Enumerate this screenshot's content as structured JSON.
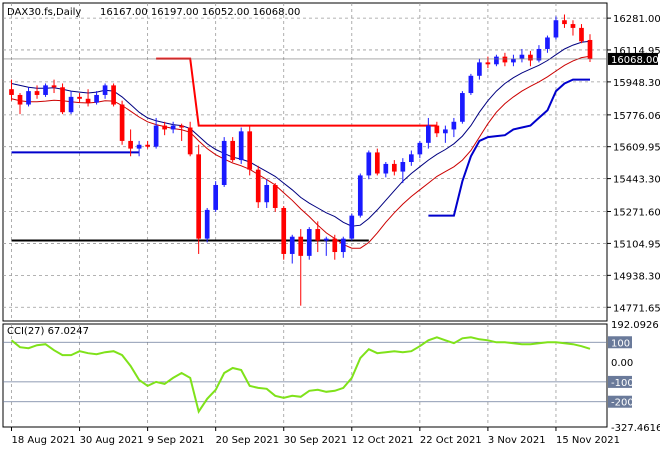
{
  "header": {
    "symbol": "DAX30.fs,Daily",
    "ohlc": "16167.00 16197.00 16052.00 16068.00",
    "indicator": "CCI(27) 67.0247"
  },
  "colors": {
    "bull": "#1a1aff",
    "bear": "#ff0000",
    "ma_fast": "#000080",
    "ma_slow": "#cc0000",
    "support": "#0000cc",
    "resistance": "#ff0000",
    "level": "#000000",
    "cci": "#7fe21a",
    "grid": "#9a9a9a",
    "price_tag_bg": "#000000"
  },
  "chart_data": [
    {
      "type": "candlestick",
      "title": "DAX30.fs,Daily",
      "ylim": [
        14700,
        16360
      ],
      "y_ticks": [
        16281.0,
        16114.95,
        15948.3,
        15776.06,
        15609.95,
        15443.3,
        15271.6,
        15104.95,
        14938.3,
        14771.65
      ],
      "y_tick_labels": [
        "16281.00",
        "16114.95",
        "15948.30",
        "15776.06",
        "15609.95",
        "15443.30",
        "15271.60",
        "15104.95",
        "14938.30",
        "14771.65"
      ],
      "last_price": 16068.0,
      "last_price_label": "16068.00",
      "x_labels": [
        "18 Aug 2021",
        "30 Aug 2021",
        "9 Sep 2021",
        "20 Sep 2021",
        "30 Sep 2021",
        "12 Oct 2021",
        "22 Oct 2021",
        "3 Nov 2021",
        "15 Nov 2021"
      ],
      "x_label_index": [
        0,
        8,
        16,
        24,
        32,
        40,
        48,
        56,
        64
      ],
      "grid": true,
      "candles": [
        [
          15910,
          15960,
          15850,
          15880
        ],
        [
          15880,
          15890,
          15780,
          15830
        ],
        [
          15830,
          15920,
          15820,
          15900
        ],
        [
          15900,
          15930,
          15860,
          15880
        ],
        [
          15880,
          15940,
          15870,
          15930
        ],
        [
          15930,
          15960,
          15890,
          15920
        ],
        [
          15920,
          15940,
          15780,
          15790
        ],
        [
          15790,
          15900,
          15780,
          15870
        ],
        [
          15870,
          15890,
          15840,
          15860
        ],
        [
          15860,
          15910,
          15820,
          15840
        ],
        [
          15840,
          15900,
          15830,
          15880
        ],
        [
          15880,
          15940,
          15860,
          15930
        ],
        [
          15930,
          15940,
          15820,
          15830
        ],
        [
          15830,
          15850,
          15620,
          15640
        ],
        [
          15640,
          15700,
          15560,
          15600
        ],
        [
          15600,
          15640,
          15560,
          15620
        ],
        [
          15620,
          15640,
          15600,
          15610
        ],
        [
          15610,
          15760,
          15600,
          15720
        ],
        [
          15720,
          15740,
          15670,
          15700
        ],
        [
          15700,
          15740,
          15680,
          15720
        ],
        [
          15720,
          15730,
          15640,
          15710
        ],
        [
          15710,
          15740,
          15560,
          15570
        ],
        [
          15570,
          15620,
          15050,
          15130
        ],
        [
          15130,
          15290,
          15110,
          15280
        ],
        [
          15280,
          15430,
          15270,
          15410
        ],
        [
          15410,
          15660,
          15400,
          15640
        ],
        [
          15640,
          15660,
          15530,
          15540
        ],
        [
          15540,
          15710,
          15520,
          15690
        ],
        [
          15690,
          15720,
          15460,
          15490
        ],
        [
          15490,
          15510,
          15290,
          15320
        ],
        [
          15320,
          15440,
          15290,
          15410
        ],
        [
          15410,
          15420,
          15270,
          15290
        ],
        [
          15290,
          15300,
          15020,
          15050
        ],
        [
          15050,
          15150,
          15000,
          15140
        ],
        [
          15140,
          15180,
          14780,
          15040
        ],
        [
          15040,
          15190,
          15020,
          15180
        ],
        [
          15180,
          15220,
          15060,
          15120
        ],
        [
          15120,
          15140,
          15040,
          15130
        ],
        [
          15130,
          15150,
          15020,
          15060
        ],
        [
          15060,
          15140,
          15030,
          15130
        ],
        [
          15130,
          15260,
          15120,
          15250
        ],
        [
          15250,
          15470,
          15240,
          15460
        ],
        [
          15460,
          15590,
          15440,
          15580
        ],
        [
          15580,
          15600,
          15460,
          15470
        ],
        [
          15470,
          15530,
          15450,
          15520
        ],
        [
          15520,
          15540,
          15460,
          15480
        ],
        [
          15480,
          15550,
          15420,
          15530
        ],
        [
          15530,
          15590,
          15510,
          15570
        ],
        [
          15570,
          15640,
          15550,
          15630
        ],
        [
          15630,
          15760,
          15600,
          15720
        ],
        [
          15720,
          15740,
          15660,
          15680
        ],
        [
          15680,
          15720,
          15630,
          15700
        ],
        [
          15700,
          15760,
          15660,
          15740
        ],
        [
          15740,
          15900,
          15730,
          15890
        ],
        [
          15890,
          15990,
          15880,
          15980
        ],
        [
          15980,
          16070,
          15960,
          16050
        ],
        [
          16050,
          16080,
          16020,
          16040
        ],
        [
          16040,
          16090,
          16030,
          16080
        ],
        [
          16080,
          16100,
          16030,
          16050
        ],
        [
          16050,
          16090,
          16030,
          16070
        ],
        [
          16070,
          16120,
          16050,
          16090
        ],
        [
          16090,
          16110,
          16030,
          16060
        ],
        [
          16060,
          16140,
          16050,
          16120
        ],
        [
          16120,
          16190,
          16100,
          16180
        ],
        [
          16180,
          16290,
          16170,
          16270
        ],
        [
          16270,
          16300,
          16230,
          16250
        ],
        [
          16250,
          16270,
          16190,
          16230
        ],
        [
          16230,
          16250,
          16150,
          16160
        ],
        [
          16167,
          16197,
          16052,
          16068
        ]
      ],
      "ma_fast": [
        15940,
        15930,
        15920,
        15915,
        15915,
        15918,
        15910,
        15900,
        15895,
        15890,
        15895,
        15905,
        15900,
        15870,
        15830,
        15790,
        15760,
        15745,
        15735,
        15725,
        15720,
        15705,
        15665,
        15625,
        15595,
        15575,
        15555,
        15545,
        15530,
        15505,
        15480,
        15455,
        15420,
        15385,
        15345,
        15315,
        15290,
        15265,
        15245,
        15215,
        15195,
        15200,
        15235,
        15280,
        15330,
        15380,
        15430,
        15470,
        15505,
        15540,
        15570,
        15595,
        15625,
        15665,
        15720,
        15790,
        15850,
        15900,
        15940,
        15970,
        15995,
        16015,
        16035,
        16060,
        16090,
        16120,
        16140,
        16155,
        16160
      ],
      "ma_slow": [
        15860,
        15850,
        15845,
        15845,
        15848,
        15852,
        15850,
        15845,
        15840,
        15838,
        15842,
        15850,
        15848,
        15825,
        15795,
        15765,
        15740,
        15725,
        15715,
        15705,
        15698,
        15685,
        15640,
        15600,
        15568,
        15545,
        15525,
        15510,
        15492,
        15465,
        15438,
        15410,
        15370,
        15330,
        15285,
        15245,
        15200,
        15160,
        15130,
        15100,
        15080,
        15080,
        15110,
        15160,
        15215,
        15265,
        15310,
        15350,
        15385,
        15420,
        15455,
        15480,
        15505,
        15540,
        15590,
        15660,
        15730,
        15790,
        15835,
        15870,
        15900,
        15925,
        15948,
        15975,
        16005,
        16035,
        16058,
        16075,
        16082
      ],
      "support_line": [
        15580,
        15580,
        15580,
        15580,
        15580,
        15580,
        15580,
        15580,
        15580,
        15580,
        15580,
        15580,
        15580,
        15580,
        15580,
        15580,
        null,
        null,
        null,
        null,
        null,
        null,
        null,
        null,
        null,
        null,
        null,
        null,
        null,
        null,
        null,
        null,
        null,
        null,
        null,
        null,
        null,
        null,
        null,
        null,
        null,
        null,
        null,
        null,
        null,
        null,
        null,
        null,
        null,
        15250,
        15250,
        15250,
        15250,
        15430,
        15560,
        15640,
        15660,
        15665,
        15670,
        15700,
        15710,
        15720,
        15760,
        15800,
        15900,
        15940,
        15960,
        15960,
        15960
      ],
      "resistance_line": [
        null,
        null,
        null,
        null,
        null,
        null,
        null,
        null,
        null,
        null,
        null,
        null,
        null,
        null,
        null,
        null,
        null,
        16070,
        16070,
        16070,
        16070,
        16070,
        15720,
        15720,
        15720,
        15720,
        15720,
        15720,
        15720,
        15720,
        15720,
        15720,
        15720,
        15720,
        15720,
        15720,
        15720,
        15720,
        15720,
        15720,
        15720,
        15720,
        15720,
        15720,
        15720,
        15720,
        15720,
        15720,
        15720,
        15720,
        15720,
        null,
        null,
        null,
        null,
        null,
        null,
        null,
        null,
        null,
        null,
        null,
        null,
        null,
        null,
        null,
        null,
        null,
        null
      ],
      "level_line": [
        15120,
        15120,
        15120,
        15120,
        15120,
        15120,
        15120,
        15120,
        15120,
        15120,
        15120,
        15120,
        15120,
        15120,
        15120,
        15120,
        15120,
        15120,
        15120,
        15120,
        15120,
        15120,
        15120,
        15120,
        15120,
        15120,
        15120,
        15120,
        15120,
        15120,
        15120,
        15120,
        15120,
        15120,
        15120,
        15120,
        15120,
        15120,
        15120,
        15120,
        15120,
        15120,
        15120,
        null,
        null,
        null,
        null,
        null,
        null,
        null,
        null,
        null,
        null,
        null,
        null,
        null,
        null,
        null,
        null,
        null,
        null,
        null,
        null,
        null,
        null,
        null,
        null,
        null,
        null
      ]
    },
    {
      "type": "line",
      "title": "CCI(27) 67.0247",
      "ylim": [
        -327.4616,
        192.0926
      ],
      "y_tick_labels": [
        "192.0926",
        "100",
        "0.00",
        "-100",
        "-200",
        "-327.4616"
      ],
      "y_ticks": [
        192.0926,
        100,
        0,
        -100,
        -200,
        -327.4616
      ],
      "reference_levels": [
        100,
        -100,
        -200
      ],
      "series": [
        {
          "values": [
            110,
            75,
            70,
            85,
            90,
            60,
            35,
            35,
            55,
            45,
            40,
            50,
            55,
            35,
            -20,
            -90,
            -120,
            -100,
            -110,
            -80,
            -55,
            -80,
            -250,
            -185,
            -140,
            -55,
            -30,
            -40,
            -120,
            -130,
            -135,
            -170,
            -180,
            -170,
            -175,
            -145,
            -140,
            -150,
            -145,
            -130,
            -80,
            20,
            65,
            45,
            50,
            55,
            50,
            55,
            80,
            110,
            125,
            110,
            95,
            120,
            125,
            115,
            110,
            100,
            100,
            95,
            90,
            90,
            95,
            100,
            100,
            95,
            90,
            80,
            67
          ]
        }
      ]
    }
  ]
}
